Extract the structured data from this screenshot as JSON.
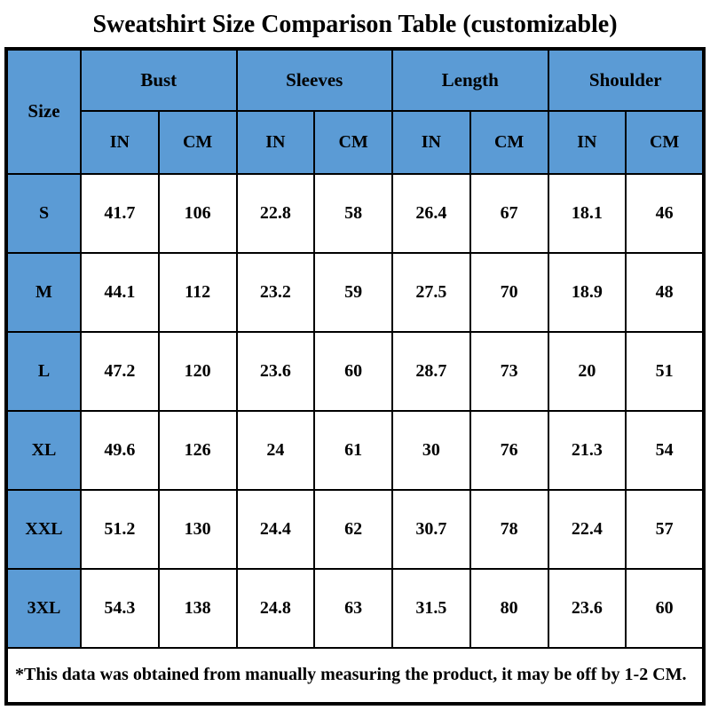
{
  "title": "Sweatshirt Size Comparison Table (customizable)",
  "colors": {
    "header_blue": "#5B9BD5",
    "border": "#000000",
    "cell_bg": "#FFFFFF",
    "text": "#000000"
  },
  "table": {
    "size_header": "Size",
    "groups": [
      {
        "label": "Bust"
      },
      {
        "label": "Sleeves"
      },
      {
        "label": "Length"
      },
      {
        "label": "Shoulder"
      }
    ],
    "unit_headers": [
      "IN",
      "CM",
      "IN",
      "CM",
      "IN",
      "CM",
      "IN",
      "CM"
    ],
    "rows": [
      {
        "size": "S",
        "values": [
          "41.7",
          "106",
          "22.8",
          "58",
          "26.4",
          "67",
          "18.1",
          "46"
        ]
      },
      {
        "size": "M",
        "values": [
          "44.1",
          "112",
          "23.2",
          "59",
          "27.5",
          "70",
          "18.9",
          "48"
        ]
      },
      {
        "size": "L",
        "values": [
          "47.2",
          "120",
          "23.6",
          "60",
          "28.7",
          "73",
          "20",
          "51"
        ]
      },
      {
        "size": "XL",
        "values": [
          "49.6",
          "126",
          "24",
          "61",
          "30",
          "76",
          "21.3",
          "54"
        ]
      },
      {
        "size": "XXL",
        "values": [
          "51.2",
          "130",
          "24.4",
          "62",
          "30.7",
          "78",
          "22.4",
          "57"
        ]
      },
      {
        "size": "3XL",
        "values": [
          "54.3",
          "138",
          "24.8",
          "63",
          "31.5",
          "80",
          "23.6",
          "60"
        ]
      }
    ],
    "footnote": "*This data was obtained from manually measuring the product, it may be off by 1-2 CM."
  },
  "chart_data": {
    "type": "table",
    "title": "Sweatshirt Size Comparison Table (customizable)",
    "columns": [
      "Size",
      "Bust IN",
      "Bust CM",
      "Sleeves IN",
      "Sleeves CM",
      "Length IN",
      "Length CM",
      "Shoulder IN",
      "Shoulder CM"
    ],
    "rows": [
      [
        "S",
        41.7,
        106,
        22.8,
        58,
        26.4,
        67,
        18.1,
        46
      ],
      [
        "M",
        44.1,
        112,
        23.2,
        59,
        27.5,
        70,
        18.9,
        48
      ],
      [
        "L",
        47.2,
        120,
        23.6,
        60,
        28.7,
        73,
        20,
        51
      ],
      [
        "XL",
        49.6,
        126,
        24,
        61,
        30,
        76,
        21.3,
        54
      ],
      [
        "XXL",
        51.2,
        130,
        24.4,
        62,
        30.7,
        78,
        22.4,
        57
      ],
      [
        "3XL",
        54.3,
        138,
        24.8,
        63,
        31.5,
        80,
        23.6,
        60
      ]
    ],
    "footnote": "*This data was obtained from manually measuring the product, it may be off by 1-2 CM.",
    "layout": {
      "header_fill": "#5B9BD5",
      "grid": true,
      "units_row": true
    }
  }
}
